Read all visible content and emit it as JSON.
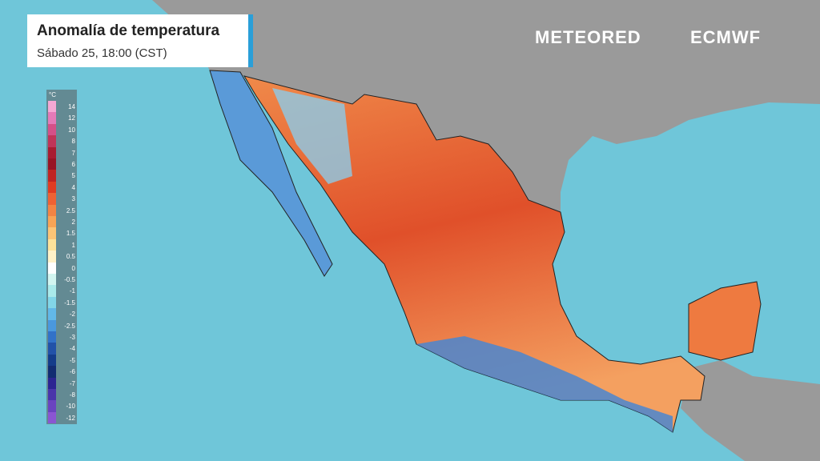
{
  "header": {
    "title": "Anomalía de temperatura",
    "subtitle": "Sábado 25, 18:00 (CST)"
  },
  "brand": {
    "logo": "METEORED",
    "partner": "ECMWF"
  },
  "legend": {
    "unit": "°C",
    "labels": [
      14,
      12,
      10,
      8,
      7,
      6,
      5,
      4,
      3,
      2.5,
      2,
      1.5,
      1,
      0.5,
      0,
      -0.5,
      -1,
      -1.5,
      -2,
      -2.5,
      -3,
      -4,
      -5,
      -6,
      -7,
      -8,
      -10,
      -12
    ],
    "colors": [
      "#f4a8d4",
      "#e47ab8",
      "#d45088",
      "#c03458",
      "#a81c30",
      "#981424",
      "#c02422",
      "#e03c22",
      "#ee6234",
      "#f28444",
      "#f8a456",
      "#fcc476",
      "#fde29a",
      "#fff2c8",
      "#ffffff",
      "#d2f5f0",
      "#aaeaea",
      "#82d6e8",
      "#62b8e8",
      "#4a98de",
      "#3272c8",
      "#2252a8",
      "#143c8a",
      "#122c72",
      "#2c2492",
      "#4a34aa",
      "#6a44c0",
      "#8a56d2"
    ]
  }
}
